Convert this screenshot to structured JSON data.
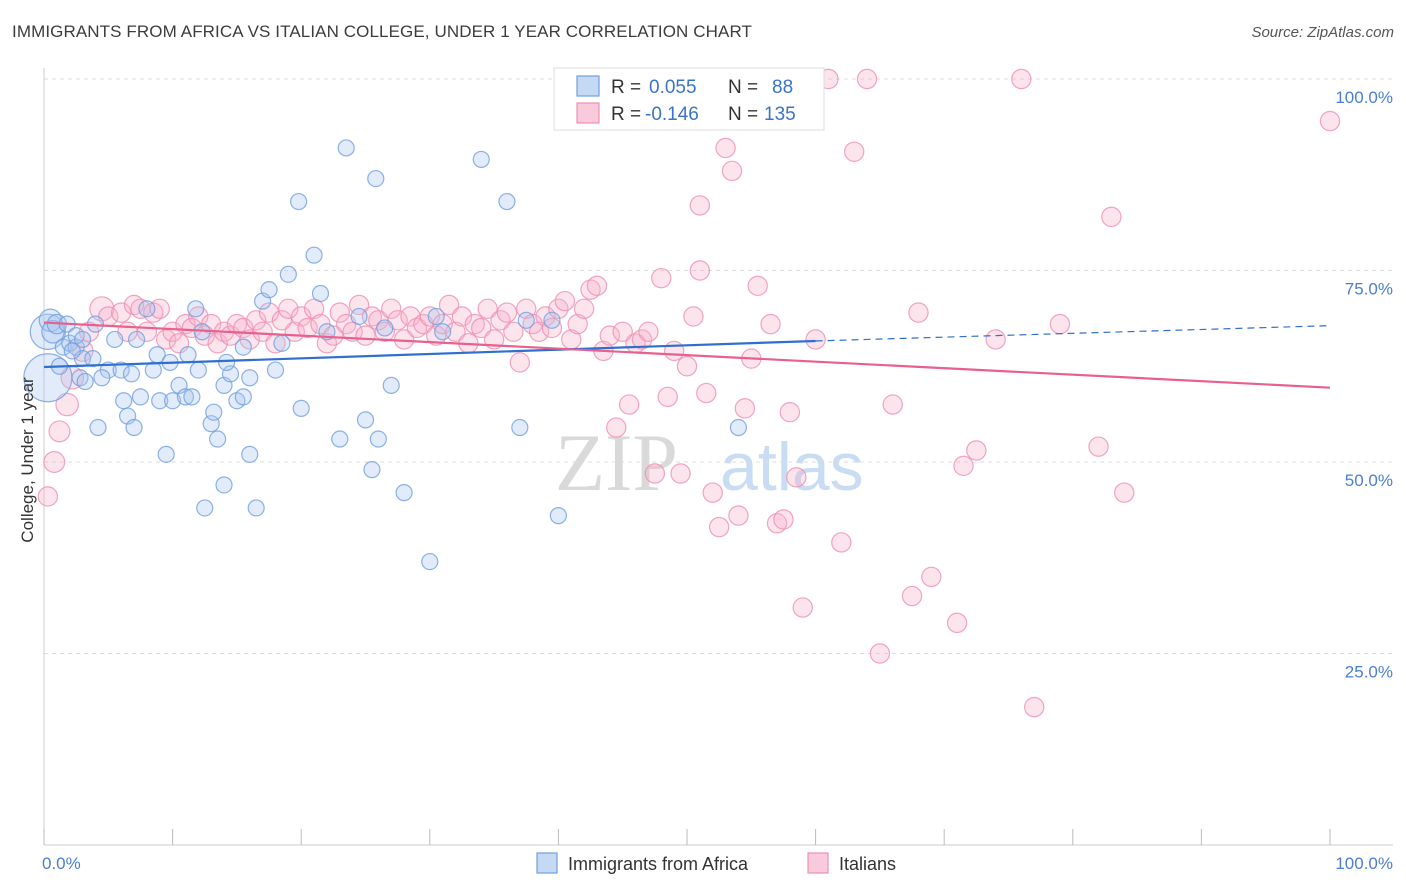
{
  "title": "IMMIGRANTS FROM AFRICA VS ITALIAN COLLEGE, UNDER 1 YEAR CORRELATION CHART",
  "source": "Source: ZipAtlas.com",
  "watermark": {
    "zip": "ZIP",
    "atlas": "atlas"
  },
  "colors": {
    "blue": "#6f9fe0",
    "blue_line": "#2f6fcf",
    "pink": "#ef8fb0",
    "pink_line": "#e8608d",
    "axis_label": "#4a7fd0"
  },
  "legend": {
    "r_label": "R =",
    "n_label": "N =",
    "blue": {
      "r": "0.055",
      "n": "88"
    },
    "pink": {
      "r": "-0.146",
      "n": "135"
    }
  },
  "chart_data": {
    "type": "scatter",
    "title": "IMMIGRANTS FROM AFRICA VS ITALIAN COLLEGE, UNDER 1 YEAR CORRELATION CHART",
    "xlabel": "",
    "ylabel": "College, Under 1 year",
    "xlim": [
      0,
      100
    ],
    "ylim": [
      0,
      100
    ],
    "x_tick_labels": [
      "0.0%",
      "100.0%"
    ],
    "y_tick_labels": [
      "25.0%",
      "50.0%",
      "75.0%",
      "100.0%"
    ],
    "y_ticks": [
      25,
      50,
      75,
      100
    ],
    "grid": true,
    "legend_placement": "top-center",
    "series": [
      {
        "name": "Immigrants from Africa",
        "color": "#6f9fe0",
        "trend": {
          "x": [
            0,
            60
          ],
          "y": [
            62.4,
            65.8
          ],
          "extended_to": [
            100,
            67.8
          ]
        },
        "points": [
          [
            0.3,
            61,
            3
          ],
          [
            0.3,
            67,
            2.2
          ],
          [
            0.5,
            68.5,
            1.4
          ],
          [
            0.7,
            67,
            1.4
          ],
          [
            1.0,
            68,
            1.2
          ],
          [
            1.5,
            65,
            1
          ],
          [
            1.8,
            68,
            1
          ],
          [
            2,
            65.5,
            1
          ],
          [
            2.5,
            65,
            1
          ],
          [
            2.5,
            66.5,
            1
          ],
          [
            2.8,
            61,
            1
          ],
          [
            3,
            63.5,
            1
          ],
          [
            3.2,
            60.5,
            1
          ],
          [
            3.8,
            63.5,
            1
          ],
          [
            4,
            68,
            1
          ],
          [
            4.2,
            54.5,
            1
          ],
          [
            5,
            62,
            1
          ],
          [
            6,
            62,
            1
          ],
          [
            6.2,
            58,
            1
          ],
          [
            6.5,
            56,
            1
          ],
          [
            7,
            54.5,
            1
          ],
          [
            7.5,
            58.5,
            1
          ],
          [
            8.5,
            62,
            1
          ],
          [
            8.8,
            64,
            1
          ],
          [
            9,
            58,
            1
          ],
          [
            9.5,
            51,
            1
          ],
          [
            10,
            58,
            1
          ],
          [
            10.5,
            60,
            1
          ],
          [
            11,
            58.5,
            1
          ],
          [
            11.2,
            64,
            1
          ],
          [
            11.5,
            58.5,
            1
          ],
          [
            11.8,
            70,
            1
          ],
          [
            12,
            62,
            1
          ],
          [
            12.5,
            44,
            1
          ],
          [
            13,
            55,
            1
          ],
          [
            13.2,
            56.5,
            1
          ],
          [
            13.5,
            53,
            1
          ],
          [
            14,
            60,
            1
          ],
          [
            14,
            47,
            1
          ],
          [
            14.5,
            61.5,
            1
          ],
          [
            15,
            58,
            1
          ],
          [
            15.5,
            65,
            1
          ],
          [
            15.5,
            58.5,
            1
          ],
          [
            16,
            61,
            1
          ],
          [
            16,
            51,
            1
          ],
          [
            16.5,
            44,
            1
          ],
          [
            17,
            71,
            1
          ],
          [
            17.5,
            72.5,
            1
          ],
          [
            18,
            62,
            1
          ],
          [
            19,
            74.5,
            1
          ],
          [
            19.8,
            84,
            1
          ],
          [
            20,
            57,
            1
          ],
          [
            21,
            77,
            1
          ],
          [
            21.5,
            72,
            1
          ],
          [
            22,
            67,
            1
          ],
          [
            23,
            53,
            1
          ],
          [
            23.5,
            91,
            1
          ],
          [
            24.5,
            69,
            1
          ],
          [
            25,
            55.5,
            1
          ],
          [
            25.5,
            49,
            1
          ],
          [
            26,
            53,
            1
          ],
          [
            26.5,
            67.5,
            1
          ],
          [
            27,
            60,
            1
          ],
          [
            28,
            46,
            1
          ],
          [
            30,
            37,
            1
          ],
          [
            30.5,
            69,
            1
          ],
          [
            31,
            67,
            1
          ],
          [
            34,
            89.5,
            1
          ],
          [
            36,
            84,
            1
          ],
          [
            37,
            54.5,
            1
          ],
          [
            37.5,
            68.5,
            1
          ],
          [
            40,
            43,
            1
          ],
          [
            39.5,
            68.5,
            1
          ],
          [
            47,
            100,
            1
          ],
          [
            54,
            54.5,
            1
          ],
          [
            3,
            66,
            1
          ],
          [
            5.5,
            66,
            1
          ],
          [
            7.2,
            66,
            1
          ],
          [
            9.8,
            63,
            1
          ],
          [
            12.3,
            67,
            1
          ],
          [
            14.2,
            63,
            1
          ],
          [
            8,
            70,
            1
          ],
          [
            2.2,
            64.5,
            1
          ],
          [
            6.8,
            61.5,
            1
          ],
          [
            18.5,
            65.5,
            1
          ],
          [
            25.8,
            87,
            1
          ],
          [
            1.2,
            62.5,
            1
          ],
          [
            4.5,
            61,
            1
          ]
        ]
      },
      {
        "name": "Italians",
        "color": "#ef8fb0",
        "trend": {
          "x": [
            0,
            100
          ],
          "y": [
            68.2,
            59.7
          ]
        },
        "points": [
          [
            0.3,
            45.5,
            1.2
          ],
          [
            0.8,
            50,
            1.3
          ],
          [
            1.2,
            54,
            1.3
          ],
          [
            1.8,
            57.5,
            1.4
          ],
          [
            2.2,
            61,
            1.4
          ],
          [
            3,
            64.5,
            1.3
          ],
          [
            3.5,
            67,
            1.2
          ],
          [
            4.5,
            70,
            1.5
          ],
          [
            5,
            69,
            1.2
          ],
          [
            6,
            69.5,
            1.2
          ],
          [
            6.5,
            67,
            1.2
          ],
          [
            7,
            70.5,
            1.2
          ],
          [
            7.5,
            70,
            1.2
          ],
          [
            8,
            67,
            1.2
          ],
          [
            8.5,
            69.5,
            1.2
          ],
          [
            9,
            70,
            1.2
          ],
          [
            9.5,
            66,
            1.2
          ],
          [
            10,
            67,
            1.2
          ],
          [
            10.5,
            65.5,
            1.2
          ],
          [
            11,
            68,
            1.2
          ],
          [
            11.5,
            67.5,
            1.2
          ],
          [
            12,
            69,
            1.2
          ],
          [
            12.5,
            66.5,
            1.2
          ],
          [
            13,
            68,
            1.2
          ],
          [
            13.5,
            65.5,
            1.2
          ],
          [
            14,
            67,
            1.2
          ],
          [
            14.5,
            66.5,
            1.2
          ],
          [
            15,
            68,
            1.2
          ],
          [
            15.5,
            67.5,
            1.2
          ],
          [
            16,
            66,
            1.2
          ],
          [
            16.5,
            68.5,
            1.2
          ],
          [
            17,
            67,
            1.2
          ],
          [
            17.5,
            69.5,
            1.2
          ],
          [
            18,
            65.5,
            1.2
          ],
          [
            18.5,
            68.5,
            1.2
          ],
          [
            19,
            70,
            1.2
          ],
          [
            19.5,
            67,
            1.2
          ],
          [
            20,
            69,
            1.2
          ],
          [
            20.5,
            67.5,
            1.2
          ],
          [
            21,
            70,
            1.2
          ],
          [
            21.5,
            68,
            1.2
          ],
          [
            22,
            65.5,
            1.2
          ],
          [
            22.5,
            66.5,
            1.2
          ],
          [
            23,
            69.5,
            1.2
          ],
          [
            23.5,
            68,
            1.2
          ],
          [
            24,
            67,
            1.2
          ],
          [
            24.5,
            70.5,
            1.2
          ],
          [
            25,
            66.5,
            1.2
          ],
          [
            25.5,
            69,
            1.2
          ],
          [
            26,
            68.5,
            1.2
          ],
          [
            26.5,
            67,
            1.2
          ],
          [
            27,
            70,
            1.2
          ],
          [
            27.5,
            68.5,
            1.2
          ],
          [
            28,
            66,
            1.2
          ],
          [
            28.5,
            69,
            1.2
          ],
          [
            29,
            67.5,
            1.2
          ],
          [
            29.5,
            68,
            1.2
          ],
          [
            30,
            69,
            1.2
          ],
          [
            30.5,
            66.5,
            1.2
          ],
          [
            31,
            68,
            1.2
          ],
          [
            31.5,
            70.5,
            1.2
          ],
          [
            32,
            67,
            1.2
          ],
          [
            32.5,
            69,
            1.2
          ],
          [
            33,
            65.5,
            1.2
          ],
          [
            33.5,
            68,
            1.2
          ],
          [
            34,
            67.5,
            1.2
          ],
          [
            34.5,
            70,
            1.2
          ],
          [
            35,
            66,
            1.2
          ],
          [
            35.5,
            68.5,
            1.2
          ],
          [
            36,
            69.5,
            1.2
          ],
          [
            36.5,
            67,
            1.2
          ],
          [
            37,
            63,
            1.2
          ],
          [
            37.5,
            70,
            1.2
          ],
          [
            38,
            68,
            1.2
          ],
          [
            38.5,
            67,
            1.2
          ],
          [
            39,
            69,
            1.2
          ],
          [
            39.5,
            67.5,
            1.2
          ],
          [
            40,
            70,
            1.2
          ],
          [
            40.5,
            71,
            1.2
          ],
          [
            41,
            66,
            1.2
          ],
          [
            41.5,
            68,
            1.2
          ],
          [
            42,
            70,
            1.2
          ],
          [
            42.5,
            72.5,
            1.2
          ],
          [
            43,
            73,
            1.2
          ],
          [
            43.5,
            64.5,
            1.2
          ],
          [
            44,
            66.5,
            1.2
          ],
          [
            44.5,
            54.5,
            1.2
          ],
          [
            45,
            67,
            1.2
          ],
          [
            45.5,
            57.5,
            1.2
          ],
          [
            46,
            65.5,
            1.2
          ],
          [
            46.5,
            66,
            1.2
          ],
          [
            47,
            67,
            1.2
          ],
          [
            47.5,
            48.5,
            1.2
          ],
          [
            48,
            74,
            1.2
          ],
          [
            48.5,
            58.5,
            1.2
          ],
          [
            49,
            64.5,
            1.2
          ],
          [
            49.5,
            48.5,
            1.2
          ],
          [
            50,
            62.5,
            1.2
          ],
          [
            50.5,
            69,
            1.2
          ],
          [
            51,
            75,
            1.2
          ],
          [
            51.5,
            59,
            1.2
          ],
          [
            52,
            46,
            1.2
          ],
          [
            52.5,
            41.5,
            1.2
          ],
          [
            53,
            91,
            1.2
          ],
          [
            53.5,
            88,
            1.2
          ],
          [
            54,
            43,
            1.2
          ],
          [
            54.5,
            57,
            1.2
          ],
          [
            55,
            63.5,
            1.2
          ],
          [
            55.5,
            73,
            1.2
          ],
          [
            56,
            100,
            1.2
          ],
          [
            56.5,
            68,
            1.2
          ],
          [
            57,
            42,
            1.2
          ],
          [
            57.5,
            42.5,
            1.2
          ],
          [
            58,
            56.5,
            1.2
          ],
          [
            58.5,
            48,
            1.2
          ],
          [
            59,
            31,
            1.2
          ],
          [
            60,
            66,
            1.2
          ],
          [
            61,
            100,
            1.2
          ],
          [
            62,
            39.5,
            1.2
          ],
          [
            63,
            90.5,
            1.2
          ],
          [
            64,
            100,
            1.2
          ],
          [
            65,
            25,
            1.2
          ],
          [
            66,
            57.5,
            1.2
          ],
          [
            67.5,
            32.5,
            1.2
          ],
          [
            68,
            69.5,
            1.2
          ],
          [
            69,
            35,
            1.2
          ],
          [
            71,
            29,
            1.2
          ],
          [
            71.5,
            49.5,
            1.2
          ],
          [
            72.5,
            51.5,
            1.2
          ],
          [
            74,
            66,
            1.2
          ],
          [
            76,
            100,
            1.2
          ],
          [
            77,
            18,
            1.2
          ],
          [
            79,
            68,
            1.2
          ],
          [
            82,
            52,
            1.2
          ],
          [
            83,
            82,
            1.2
          ],
          [
            84,
            46,
            1.2
          ],
          [
            100,
            94.5,
            1.2
          ],
          [
            51,
            83.5,
            1.2
          ]
        ]
      }
    ]
  },
  "bottom_legend": [
    {
      "label": "Immigrants from Africa",
      "color": "#6f9fe0"
    },
    {
      "label": "Italians",
      "color": "#ef8fb0"
    }
  ]
}
